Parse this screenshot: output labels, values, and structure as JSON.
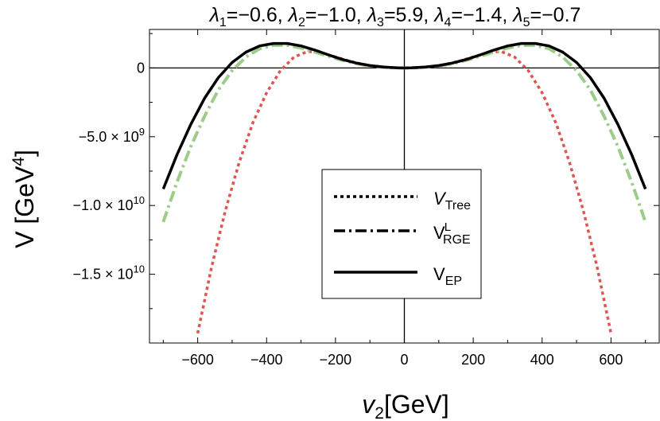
{
  "chart_data": {
    "type": "line",
    "title_parts": [
      {
        "sym": "λ",
        "sub": "1",
        "val": "=−0.6, "
      },
      {
        "sym": "λ",
        "sub": "2",
        "val": "=−1.0, "
      },
      {
        "sym": "λ",
        "sub": "3",
        "val": "=5.9, "
      },
      {
        "sym": "λ",
        "sub": "4",
        "val": "=−1.4, "
      },
      {
        "sym": "λ",
        "sub": "5",
        "val": "=−0.7"
      }
    ],
    "xlabel": {
      "main": "v",
      "sub": "2",
      "rest": "[GeV]"
    },
    "ylabel": {
      "main": "V [GeV",
      "sup": "4",
      "rest": "]"
    },
    "xlim": [
      -740,
      740
    ],
    "ylim": [
      -20000000000.0,
      2800000000.0
    ],
    "x_ticks": [
      -600,
      -400,
      -200,
      0,
      200,
      400,
      600
    ],
    "x_tick_labels": [
      "−600",
      "−400",
      "−200",
      "0",
      "200",
      "400",
      "600"
    ],
    "y_ticks": [
      {
        "value": 0,
        "mant": "0",
        "exp": ""
      },
      {
        "value": -5000000000.0,
        "mant": "−5.0 × 10",
        "exp": "9"
      },
      {
        "value": -10000000000.0,
        "mant": "−1.0 × 10",
        "exp": "10"
      },
      {
        "value": -15000000000.0,
        "mant": "−1.5 × 10",
        "exp": "10"
      }
    ],
    "grid": false,
    "legend_position": "center",
    "series": [
      {
        "name_main": "V",
        "name_sub": "Tree",
        "name_sup": "",
        "style": "dotted",
        "color": "#dd5555",
        "x": [
          -600,
          -560,
          -520,
          -480,
          -440,
          -400,
          -360,
          -320,
          -280,
          -240,
          -200,
          -160,
          -120,
          -80,
          -40,
          0,
          40,
          80,
          120,
          160,
          200,
          240,
          280,
          320,
          360,
          400,
          440,
          480,
          520,
          560,
          600
        ],
        "y": [
          -19300000000.0,
          -14500000000.0,
          -10400000000.0,
          -6900000000.0,
          -4000000000.0,
          -1800000000.0,
          -200000000.0,
          800000000.0,
          1200000000.0,
          1100000000.0,
          800000000.0,
          500000000.0,
          260000000.0,
          100000000.0,
          20000000.0,
          0,
          20000000.0,
          100000000.0,
          260000000.0,
          500000000.0,
          800000000.0,
          1100000000.0,
          1200000000.0,
          800000000.0,
          -200000000.0,
          -1800000000.0,
          -4000000000.0,
          -6900000000.0,
          -10400000000.0,
          -14500000000.0,
          -19300000000.0
        ]
      },
      {
        "name_main": "V",
        "name_sub": "RGE",
        "name_sup": "L",
        "style": "dashdot",
        "color": "#9ccc88",
        "x": [
          -700,
          -660,
          -620,
          -580,
          -540,
          -500,
          -460,
          -420,
          -380,
          -340,
          -300,
          -260,
          -220,
          -180,
          -140,
          -100,
          -60,
          -20,
          0,
          20,
          60,
          100,
          140,
          180,
          220,
          260,
          300,
          340,
          380,
          420,
          460,
          500,
          540,
          580,
          620,
          660,
          700
        ],
        "y": [
          -11200000000.0,
          -8300000000.0,
          -5700000000.0,
          -3500000000.0,
          -1600000000.0,
          -200000000.0,
          800000000.0,
          1400000000.0,
          1650000000.0,
          1650000000.0,
          1450000000.0,
          1150000000.0,
          850000000.0,
          560000000.0,
          320000000.0,
          150000000.0,
          50000000.0,
          5000000.0,
          0,
          5000000.0,
          50000000.0,
          150000000.0,
          320000000.0,
          560000000.0,
          850000000.0,
          1150000000.0,
          1450000000.0,
          1650000000.0,
          1650000000.0,
          1400000000.0,
          800000000.0,
          -200000000.0,
          -1600000000.0,
          -3500000000.0,
          -5700000000.0,
          -8300000000.0,
          -11200000000.0
        ]
      },
      {
        "name_main": "V",
        "name_sub": "EP",
        "name_sup": "",
        "style": "solid",
        "color": "#000000",
        "x": [
          -700,
          -660,
          -620,
          -580,
          -540,
          -500,
          -460,
          -420,
          -380,
          -340,
          -300,
          -260,
          -220,
          -180,
          -140,
          -100,
          -60,
          -20,
          0,
          20,
          60,
          100,
          140,
          180,
          220,
          260,
          300,
          340,
          380,
          420,
          460,
          500,
          540,
          580,
          620,
          660,
          700
        ],
        "y": [
          -8800000000.0,
          -6300000000.0,
          -4100000000.0,
          -2200000000.0,
          -700000000.0,
          400000000.0,
          1150000000.0,
          1600000000.0,
          1780000000.0,
          1780000000.0,
          1600000000.0,
          1300000000.0,
          950000000.0,
          620000000.0,
          360000000.0,
          170000000.0,
          60000000.0,
          6000000.0,
          0,
          6000000.0,
          60000000.0,
          170000000.0,
          360000000.0,
          620000000.0,
          950000000.0,
          1300000000.0,
          1600000000.0,
          1780000000.0,
          1780000000.0,
          1600000000.0,
          1150000000.0,
          400000000.0,
          -700000000.0,
          -2200000000.0,
          -4100000000.0,
          -6300000000.0,
          -8800000000.0
        ]
      }
    ]
  }
}
